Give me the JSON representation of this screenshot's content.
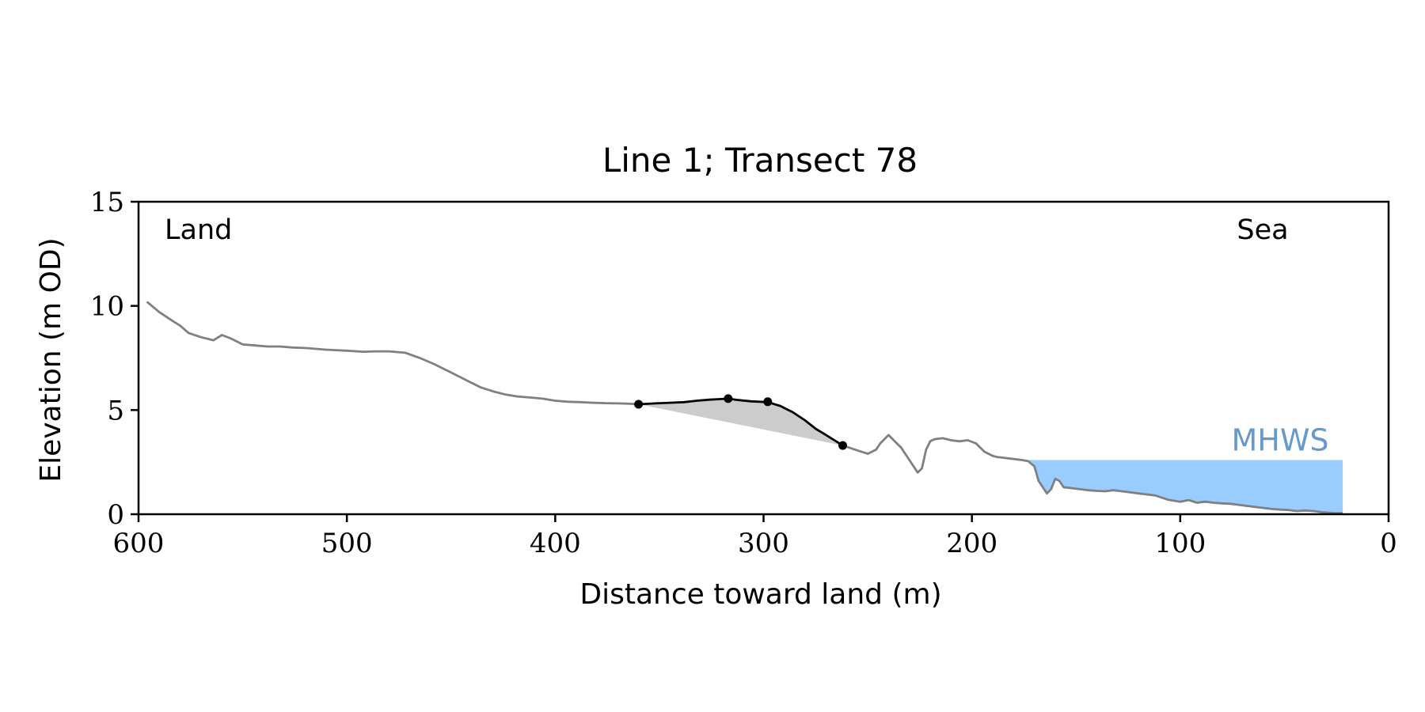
{
  "chart_data": {
    "type": "line",
    "title": "Line 1; Transect 78",
    "xlabel": "Distance toward land (m)",
    "ylabel": "Elevation (m OD)",
    "xlim": [
      600,
      0
    ],
    "ylim": [
      0,
      15
    ],
    "xticks": [
      "600",
      "500",
      "400",
      "300",
      "200",
      "100",
      "0"
    ],
    "yticks": [
      "0",
      "5",
      "10",
      "15"
    ],
    "grid": false,
    "annotations": {
      "land": "Land",
      "sea": "Sea",
      "mhws": "MHWS"
    },
    "mhws": {
      "level": 2.6,
      "x_from": 173,
      "x_to": 22
    },
    "colors": {
      "profile": "#808080",
      "feature": "#000000",
      "fill": "#cccccc",
      "mhws": "#99ccff",
      "mhws_label": "#6699cc"
    },
    "profile": {
      "x": [
        596,
        590,
        584,
        580,
        576,
        570,
        564,
        560,
        556,
        550,
        544,
        538,
        532,
        526,
        520,
        510,
        500,
        492,
        486,
        480,
        472,
        465,
        458,
        450,
        442,
        436,
        430,
        424,
        418,
        412,
        406,
        400,
        394,
        388,
        382,
        376,
        370,
        364,
        360
      ],
      "y": [
        10.2,
        9.7,
        9.3,
        9.05,
        8.7,
        8.5,
        8.35,
        8.6,
        8.45,
        8.15,
        8.1,
        8.05,
        8.05,
        8.0,
        7.98,
        7.9,
        7.85,
        7.8,
        7.82,
        7.82,
        7.75,
        7.5,
        7.2,
        6.8,
        6.4,
        6.1,
        5.9,
        5.75,
        5.65,
        5.6,
        5.55,
        5.45,
        5.4,
        5.38,
        5.35,
        5.33,
        5.32,
        5.3,
        5.28
      ]
    },
    "profile_seaward": {
      "x": [
        262,
        256,
        250,
        246,
        244,
        240,
        238,
        234,
        230,
        226,
        224,
        222,
        220,
        218,
        214,
        210,
        206,
        202,
        198,
        194,
        190,
        188,
        184,
        180,
        176,
        173,
        170,
        168,
        164,
        162,
        160,
        158,
        156,
        152,
        148,
        144,
        140,
        136,
        132,
        128,
        124,
        120,
        116,
        112,
        106,
        100,
        96,
        92,
        88,
        84,
        80,
        76,
        72,
        68,
        64,
        60,
        56,
        52,
        48,
        44,
        40,
        36,
        32,
        30,
        26,
        22
      ],
      "y": [
        3.3,
        3.1,
        2.9,
        3.1,
        3.4,
        3.8,
        3.6,
        3.2,
        2.6,
        2.0,
        2.2,
        3.1,
        3.5,
        3.6,
        3.65,
        3.55,
        3.5,
        3.55,
        3.4,
        3.0,
        2.8,
        2.75,
        2.7,
        2.65,
        2.6,
        2.55,
        2.3,
        1.6,
        1.0,
        1.2,
        1.7,
        1.6,
        1.3,
        1.25,
        1.2,
        1.15,
        1.12,
        1.1,
        1.15,
        1.1,
        1.05,
        1.0,
        0.95,
        0.9,
        0.7,
        0.6,
        0.68,
        0.55,
        0.6,
        0.55,
        0.52,
        0.5,
        0.45,
        0.4,
        0.35,
        0.3,
        0.25,
        0.22,
        0.2,
        0.15,
        0.18,
        0.15,
        0.1,
        0.08,
        0.05,
        0.05
      ]
    },
    "feature": {
      "x": [
        360,
        352,
        345,
        338,
        332,
        326,
        322,
        317,
        312,
        306,
        302,
        298,
        292,
        286,
        280,
        275,
        270,
        266,
        262
      ],
      "y": [
        5.28,
        5.32,
        5.35,
        5.38,
        5.45,
        5.5,
        5.52,
        5.55,
        5.48,
        5.42,
        5.4,
        5.38,
        5.2,
        4.9,
        4.5,
        4.1,
        3.8,
        3.55,
        3.3
      ]
    },
    "markers": {
      "x": [
        360,
        317,
        298,
        262
      ],
      "y": [
        5.28,
        5.55,
        5.4,
        3.3
      ]
    }
  }
}
